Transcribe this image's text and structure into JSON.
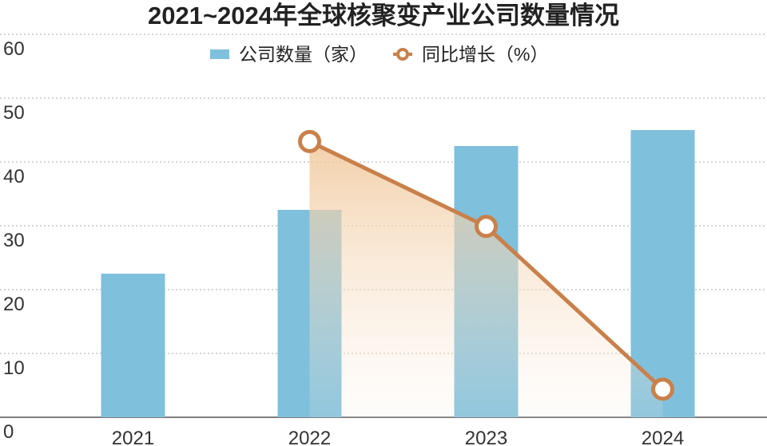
{
  "chart_data": {
    "type": "bar",
    "title": "2021~2024年全球核聚变产业公司数量情况",
    "categories": [
      "2021",
      "2022",
      "2023",
      "2024"
    ],
    "series": [
      {
        "name": "公司数量（家）",
        "type": "bar",
        "color": "#7fc0dc",
        "values": [
          22.5,
          32.5,
          42.5,
          45
        ]
      },
      {
        "name": "同比增长（%）",
        "type": "line",
        "color": "#c9804a",
        "values": [
          null,
          43.2,
          29.9,
          4.4
        ]
      }
    ],
    "ylim": [
      0,
      60
    ],
    "yticks": [
      0,
      10,
      20,
      30,
      40,
      50,
      60
    ],
    "grid": true
  }
}
